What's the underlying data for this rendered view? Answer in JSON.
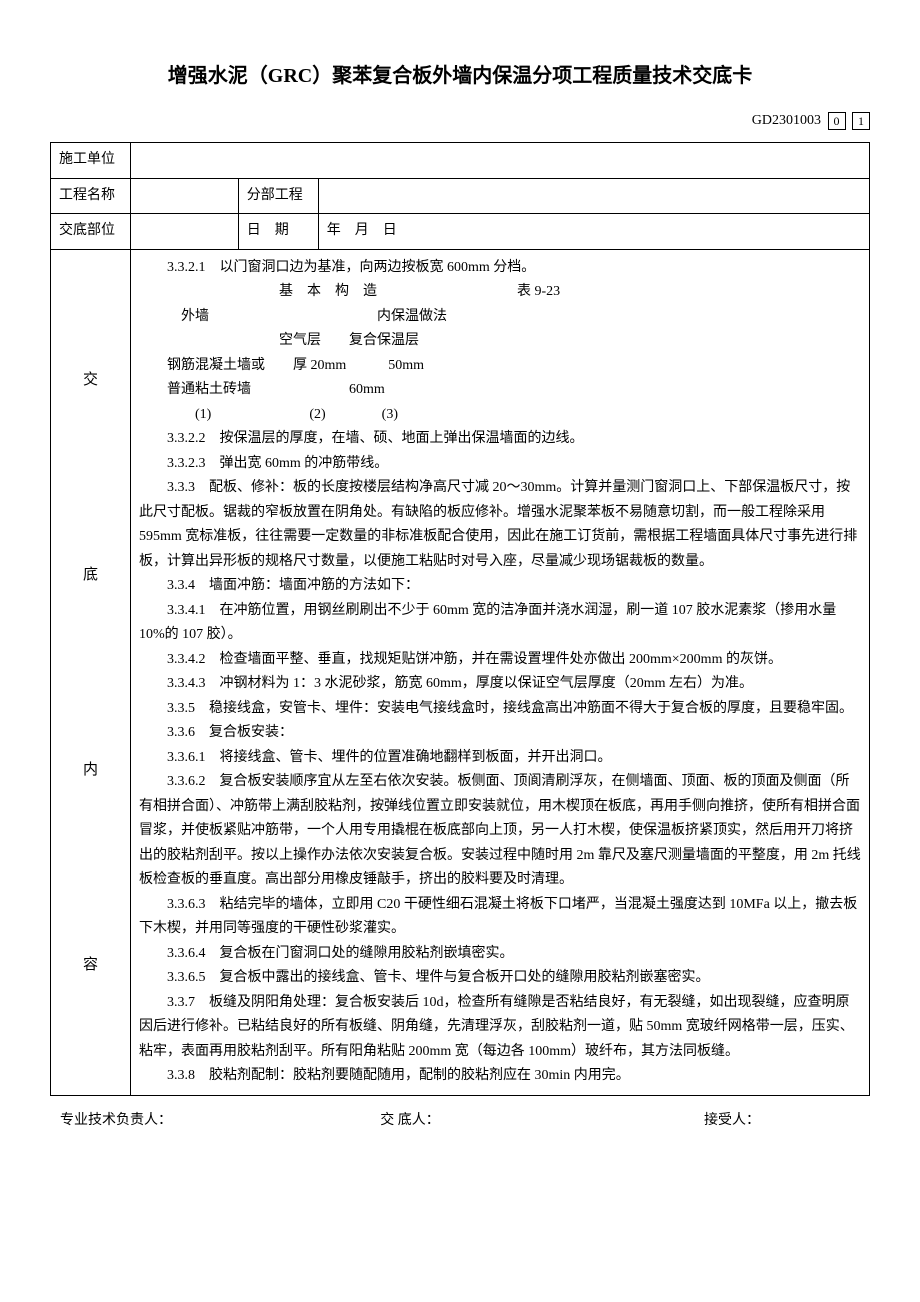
{
  "title": "增强水泥（GRC）聚苯复合板外墙内保温分项工程质量技术交底卡",
  "doc_code": "GD2301003",
  "code_box1": "0",
  "code_box2": "1",
  "labels": {
    "unit": "施工单位",
    "project": "工程名称",
    "subproject": "分部工程",
    "location": "交底部位",
    "date": "日　期",
    "date_value": "年　月　日"
  },
  "vertical_label": {
    "c1": "交",
    "c2": "底",
    "c3": "内",
    "c4": "容"
  },
  "content": {
    "p1": "3.3.2.1　以门窗洞口边为基准，向两边按板宽 600mm 分档。",
    "p2_title": "基　本　构　造",
    "p2_t": "表 9-23",
    "p3a": "外墙",
    "p3b": "内保温做法",
    "p4a": "空气层",
    "p4b": "复合保温层",
    "p5a": "钢筋混凝土墙或",
    "p5b": "厚 20mm",
    "p5c": "50mm",
    "p6a": "普通粘土砖墙",
    "p6b": "60mm",
    "p7a": "(1)",
    "p7b": "(2)",
    "p7c": "(3)",
    "p8": "3.3.2.2　按保温层的厚度，在墙、硕、地面上弹出保温墙面的边线。",
    "p9": "3.3.2.3　弹出宽 60mm 的冲筋带线。",
    "p10": "3.3.3　配板、修补：板的长度按楼层结构净高尺寸减 20～30mm。计算并量测门窗洞口上、下部保温板尺寸，按此尺寸配板。锯裁的窄板放置在阴角处。有缺陷的板应修补。增强水泥聚苯板不易随意切割，而一般工程除采用 595mm 宽标准板，往往需要一定数量的非标准板配合使用，因此在施工订货前，需根据工程墙面具体尺寸事先进行排板，计算出异形板的规格尺寸数量，以便施工粘贴时对号入座，尽量减少现场锯裁板的数量。",
    "p11": "3.3.4　墙面冲筋：墙面冲筋的方法如下：",
    "p12": "3.3.4.1　在冲筋位置，用钢丝刷刷出不少于 60mm 宽的洁净面并浇水润湿，刷一道 107 胶水泥素浆（掺用水量 10%的 107 胶）。",
    "p13": "3.3.4.2　检查墙面平整、垂直，找规矩贴饼冲筋，并在需设置埋件处亦做出 200mm×200mm 的灰饼。",
    "p14": "3.3.4.3　冲钢材料为 1：3 水泥砂浆，筋宽 60mm，厚度以保证空气层厚度（20mm 左右）为准。",
    "p15": "3.3.5　稳接线盒，安管卡、埋件：安装电气接线盒时，接线盒高出冲筋面不得大于复合板的厚度，且要稳牢固。",
    "p16": "3.3.6　复合板安装：",
    "p17": "3.3.6.1　将接线盒、管卡、埋件的位置准确地翻样到板面，并开出洞口。",
    "p18": "3.3.6.2　复合板安装顺序宜从左至右依次安装。板侧面、顶阆清刷浮灰，在侧墙面、顶面、板的顶面及侧面（所有相拼合面）、冲筋带上满刮胶粘剂，按弹线位置立即安装就位，用木楔顶在板底，再用手侧向推挤，使所有相拼合面冒浆，并使板紧贴冲筋带，一个人用专用撬棍在板底部向上顶，另一人打木楔，使保温板挤紧顶实，然后用开刀将挤出的胶粘剂刮平。按以上操作办法依次安装复合板。安装过程中随时用 2m 靠尺及塞尺测量墙面的平整度，用 2m 托线板检查板的垂直度。高出部分用橡皮锤敲手，挤出的胶料要及时清理。",
    "p19": "3.3.6.3　粘结完毕的墙体，立即用 C20 干硬性细石混凝土将板下口堵严，当混凝土强度达到 10MFa 以上，撤去板下木楔，并用同等强度的干硬性砂浆灌实。",
    "p20": "3.3.6.4　复合板在门窗洞口处的缝隙用胶粘剂嵌填密实。",
    "p21": "3.3.6.5　复合板中露出的接线盒、管卡、埋件与复合板开口处的缝隙用胶粘剂嵌塞密实。",
    "p22": "3.3.7　板缝及阴阳角处理：复合板安装后 10d，检查所有缝隙是否粘结良好，有无裂缝，如出现裂缝，应查明原因后进行修补。已粘结良好的所有板缝、阴角缝，先清理浮灰，刮胶粘剂一道，贴 50mm 宽玻纤网格带一层，压实、粘牢，表面再用胶粘剂刮平。所有阳角粘贴 200mm 宽（每边各 100mm）玻纤布，其方法同板缝。",
    "p23": "3.3.8　胶粘剂配制：胶粘剂要随配随用，配制的胶粘剂应在 30min 内用完。"
  },
  "footer": {
    "f1": "专业技术负责人：",
    "f2": "交 底人：",
    "f3": "接受人："
  }
}
